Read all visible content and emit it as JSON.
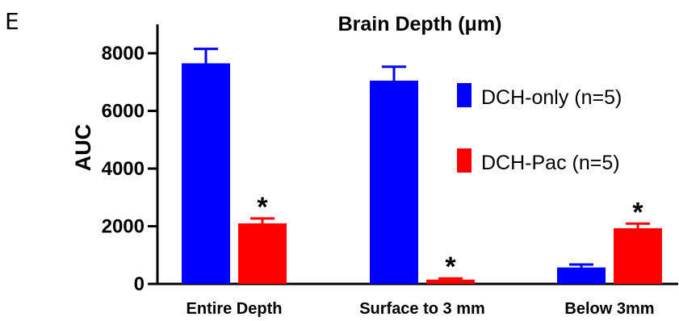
{
  "panel_letter": "E",
  "colors": {
    "series_0": "#0000ff",
    "series_1": "#ff0000",
    "axis": "#000000"
  },
  "chart_data": {
    "type": "bar",
    "title": "Brain Depth (μm)",
    "xlabel": "",
    "ylabel": "AUC",
    "ylim": [
      0,
      9000
    ],
    "yticks": [
      0,
      2000,
      4000,
      6000,
      8000
    ],
    "ytick_labels": [
      "0",
      "2000",
      "4000",
      "6000",
      "8000"
    ],
    "categories": [
      "Entire Depth",
      "Surface to 3 mm",
      "Below 3mm"
    ],
    "series": [
      {
        "name": "DCH-only (n=5)",
        "values": [
          7650,
          7050,
          570
        ],
        "errors": [
          500,
          480,
          100
        ]
      },
      {
        "name": "DCH-Pac (n=5)",
        "values": [
          2100,
          150,
          1930
        ],
        "errors": [
          170,
          40,
          160
        ]
      }
    ],
    "significance": [
      {
        "category_index": 0,
        "series_index": 1,
        "label": "*"
      },
      {
        "category_index": 1,
        "series_index": 1,
        "label": "*"
      },
      {
        "category_index": 2,
        "series_index": 1,
        "label": "*"
      }
    ],
    "legend_position": "right",
    "grid": false
  }
}
